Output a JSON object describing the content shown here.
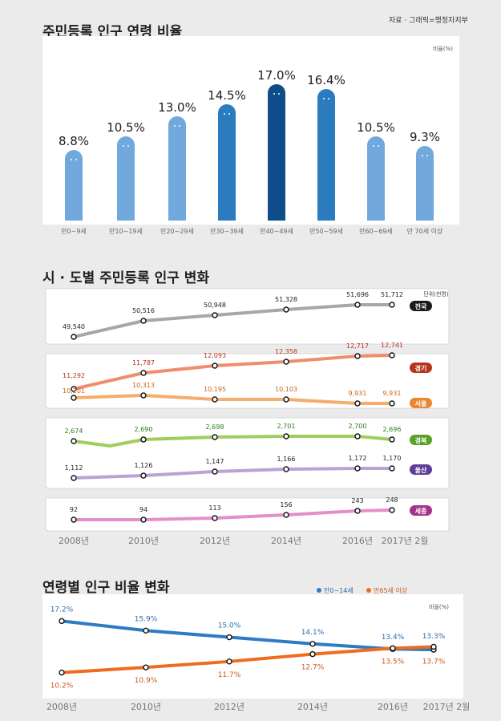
{
  "source": "자료 · 그래픽=행정자치부",
  "sections": {
    "s1_title": "주민등록 인구 연령 비율",
    "s2_title": "시 · 도별 주민등록 인구 변화",
    "s3_title": "연령별 인구 비율 변화"
  },
  "chart_data": [
    {
      "type": "bar",
      "title": "주민등록 인구 연령 비율",
      "unit": "비율(%)",
      "categories": [
        "만0~9세",
        "만10~19세",
        "만20~29세",
        "만30~39세",
        "만40~49세",
        "만50~59세",
        "만60~69세",
        "만 70세 이상"
      ],
      "values": [
        8.8,
        10.5,
        13.0,
        14.5,
        17.0,
        16.4,
        10.5,
        9.3
      ],
      "value_labels": [
        "8.8%",
        "10.5%",
        "13.0%",
        "14.5%",
        "17.0%",
        "16.4%",
        "10.5%",
        "9.3%"
      ],
      "colors": [
        "#72a9dc",
        "#72a9dc",
        "#72a9dc",
        "#2b7bbf",
        "#0e4d8a",
        "#2b7bbf",
        "#72a9dc",
        "#72a9dc"
      ]
    },
    {
      "type": "line",
      "title": "시 · 도별 주민등록 인구 변화",
      "unit": "단위(천명)",
      "x": [
        "2008년",
        "2010년",
        "2012년",
        "2014년",
        "2016년",
        "2017년 2월"
      ],
      "panels": [
        {
          "series": [
            {
              "name": "전국",
              "values": [
                49540,
                50516,
                50948,
                51328,
                51696,
                51712
              ],
              "labels": [
                "49,540",
                "50,516",
                "50,948",
                "51,328",
                "51,696",
                "51,712"
              ],
              "color": "#a7a7a7",
              "badge": "#1a1a1a"
            }
          ]
        },
        {
          "series": [
            {
              "name": "경기",
              "values": [
                11292,
                11787,
                12093,
                12358,
                12717,
                12741
              ],
              "labels": [
                "11,292",
                "11,787",
                "12,093",
                "12,358",
                "12,717",
                "12,741"
              ],
              "color": "#ef8e6c",
              "badge": "#b5341b",
              "label_color": "#b5341b"
            },
            {
              "name": "서울",
              "values": [
                10201,
                10313,
                10195,
                10103,
                9931,
                9931
              ],
              "labels": [
                "10,201",
                "10,313",
                "10,195",
                "10,103",
                "9,931",
                "9,931"
              ],
              "color": "#f4ad6a",
              "badge": "#e98630",
              "label_color": "#c8641b"
            }
          ]
        },
        {
          "series": [
            {
              "name": "경북",
              "values": [
                2674,
                2690,
                2698,
                2701,
                2700,
                2696
              ],
              "labels": [
                "2,674",
                "2,690",
                "2,698",
                "2,701",
                "2,700",
                "2,696"
              ],
              "color": "#a0cd5f",
              "badge": "#58a12b",
              "label_color": "#2e7a18"
            },
            {
              "name": "울산",
              "values": [
                1112,
                1126,
                1147,
                1166,
                1172,
                1170
              ],
              "labels": [
                "1,112",
                "1,126",
                "1,147",
                "1,166",
                "1,172",
                "1,170"
              ],
              "color": "#b9a3d4",
              "badge": "#5e3d97"
            }
          ]
        },
        {
          "series": [
            {
              "name": "세종",
              "values": [
                92,
                94,
                113,
                156,
                243,
                248
              ],
              "labels": [
                "92",
                "94",
                "113",
                "156",
                "243",
                "248"
              ],
              "color": "#e48fca",
              "badge": "#a3348a"
            }
          ]
        }
      ]
    },
    {
      "type": "line",
      "title": "연령별 인구 비율 변화",
      "unit": "비율(%)",
      "x": [
        "2008년",
        "2010년",
        "2012년",
        "2014년",
        "2016년",
        "2017년 2월"
      ],
      "series": [
        {
          "name": "만0~14세",
          "values": [
            17.2,
            15.9,
            15.0,
            14.1,
            13.4,
            13.3
          ],
          "labels": [
            "17.2%",
            "15.9%",
            "15.0%",
            "14.1%",
            "13.4%",
            "13.3%"
          ],
          "color": "#2e7bc4",
          "label_color": "#2e6ea8"
        },
        {
          "name": "만65세 이상",
          "values": [
            10.2,
            10.9,
            11.7,
            12.7,
            13.5,
            13.7
          ],
          "labels": [
            "10.2%",
            "10.9%",
            "11.7%",
            "12.7%",
            "13.5%",
            "13.7%"
          ],
          "color": "#ee6c1f",
          "label_color": "#c85b1e"
        }
      ]
    }
  ]
}
